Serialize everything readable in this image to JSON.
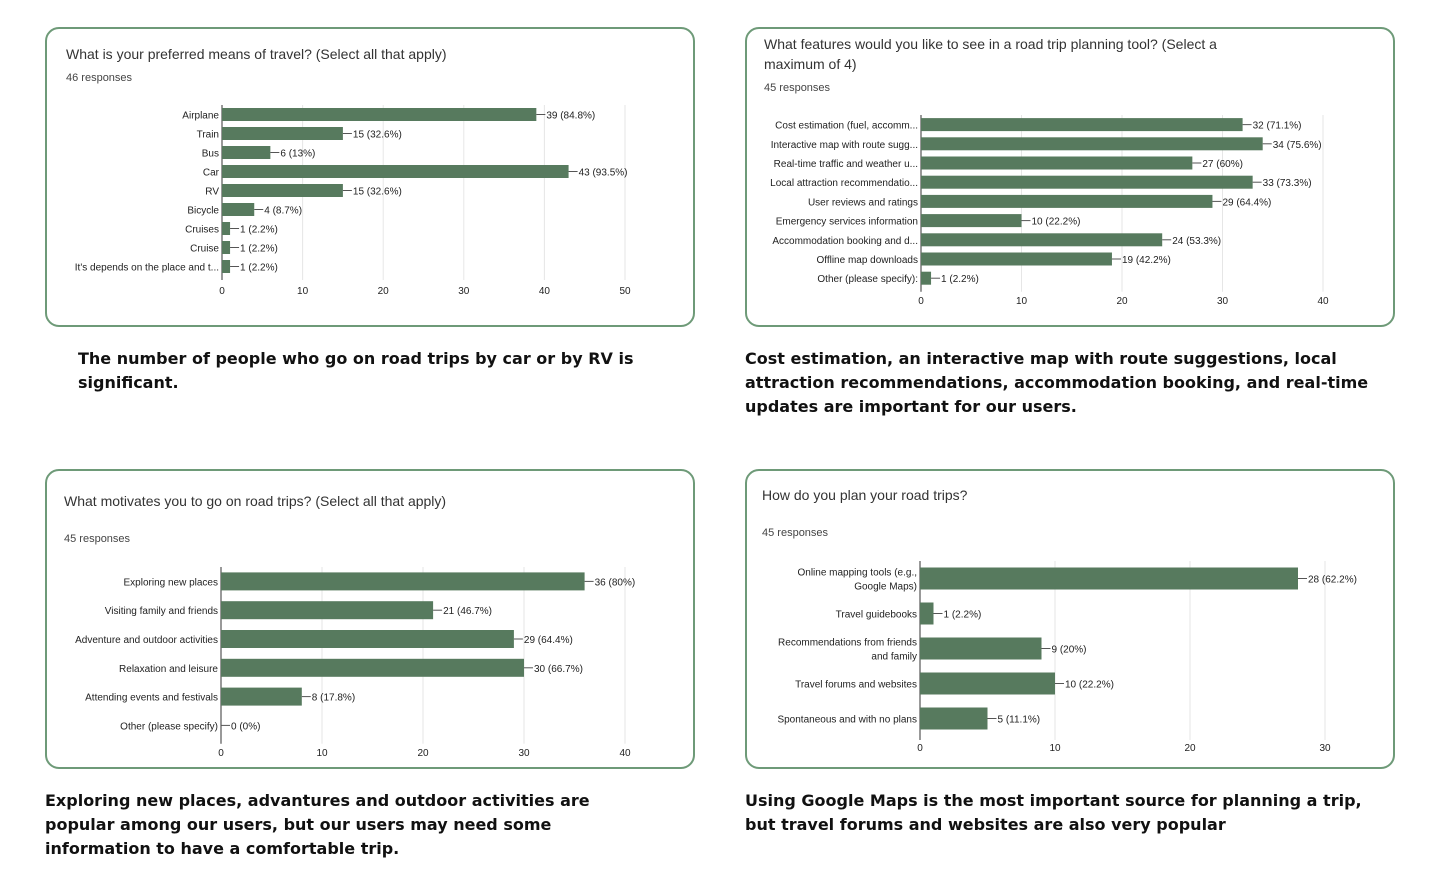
{
  "colors": {
    "bar": "#577a5e",
    "border": "#6e9a78",
    "grid": "#e6e6e6",
    "axis": "#333333",
    "text": "#222222"
  },
  "panels": [
    {
      "title": "What is your preferred means of travel? (Select all that apply)",
      "responses": "46 responses",
      "caption": "The number of people who go on road trips by car or by RV is significant."
    },
    {
      "title": "What features would you like to see in a road trip planning tool? (Select a maximum of 4)",
      "responses": "45 responses",
      "caption": "Cost estimation, an interactive map with route suggestions, local attraction recommendations, accommodation booking, and real-time updates are important for our users."
    },
    {
      "title": "What motivates you to go on road trips? (Select all that apply)",
      "responses": "45 responses",
      "caption": "Exploring new places, advantures and outdoor activities are popular among our users, but our users may need some information to have a comfortable trip."
    },
    {
      "title": "How do you plan your road trips?",
      "responses": "45 responses",
      "caption": "Using Google Maps is the most important source for planning a trip, but travel forums and websites are also very popular"
    }
  ],
  "chart_data": [
    {
      "type": "bar",
      "orientation": "horizontal",
      "title": "What is your preferred means of travel? (Select all that apply)",
      "categories": [
        "Airplane",
        "Train",
        "Bus",
        "Car",
        "RV",
        "Bicycle",
        "Cruises",
        "Cruise",
        "It's depends on the place and t..."
      ],
      "values": [
        39,
        15,
        6,
        43,
        15,
        4,
        1,
        1,
        1
      ],
      "data_labels": [
        "39 (84.8%)",
        "15 (32.6%)",
        "6 (13%)",
        "43 (93.5%)",
        "15 (32.6%)",
        "4 (8.7%)",
        "1 (2.2%)",
        "1 (2.2%)",
        "1 (2.2%)"
      ],
      "xticks": [
        0,
        10,
        20,
        30,
        40,
        50
      ],
      "xlim": [
        0,
        50
      ],
      "grid": true
    },
    {
      "type": "bar",
      "orientation": "horizontal",
      "title": "What features would you like to see in a road trip planning tool? (Select a maximum of 4)",
      "categories": [
        "Cost estimation (fuel, accomm...",
        "Interactive map with route sugg...",
        "Real-time traffic and weather u...",
        "Local attraction recommendatio...",
        "User reviews and ratings",
        "Emergency services information",
        "Accommodation booking and d...",
        "Offline map downloads",
        "Other (please specify):"
      ],
      "values": [
        32,
        34,
        27,
        33,
        29,
        10,
        24,
        19,
        1
      ],
      "data_labels": [
        "32 (71.1%)",
        "34 (75.6%)",
        "27 (60%)",
        "33 (73.3%)",
        "29 (64.4%)",
        "10 (22.2%)",
        "24 (53.3%)",
        "19 (42.2%)",
        "1 (2.2%)"
      ],
      "xticks": [
        0,
        10,
        20,
        30,
        40
      ],
      "xlim": [
        0,
        40
      ],
      "grid": true
    },
    {
      "type": "bar",
      "orientation": "horizontal",
      "title": "What motivates you to go on road trips? (Select all that apply)",
      "categories": [
        "Exploring new places",
        "Visiting family and friends",
        "Adventure and outdoor activities",
        "Relaxation and leisure",
        "Attending events and festivals",
        "Other (please specify)"
      ],
      "values": [
        36,
        21,
        29,
        30,
        8,
        0
      ],
      "data_labels": [
        "36 (80%)",
        "21 (46.7%)",
        "29 (64.4%)",
        "30 (66.7%)",
        "8 (17.8%)",
        "0 (0%)"
      ],
      "xticks": [
        0,
        10,
        20,
        30,
        40
      ],
      "xlim": [
        0,
        40
      ],
      "grid": true
    },
    {
      "type": "bar",
      "orientation": "horizontal",
      "title": "How do you plan your road trips?",
      "categories": [
        [
          "Online mapping tools (e.g.,",
          "Google Maps)"
        ],
        [
          "Travel guidebooks"
        ],
        [
          "Recommendations from friends",
          "and family"
        ],
        [
          "Travel forums and websites"
        ],
        [
          "Spontaneous and with no plans"
        ]
      ],
      "values": [
        28,
        1,
        9,
        10,
        5
      ],
      "data_labels": [
        "28 (62.2%)",
        "1 (2.2%)",
        "9 (20%)",
        "10 (22.2%)",
        "5 (11.1%)"
      ],
      "xticks": [
        0,
        10,
        20,
        30
      ],
      "xlim": [
        0,
        30
      ],
      "grid": true
    }
  ]
}
